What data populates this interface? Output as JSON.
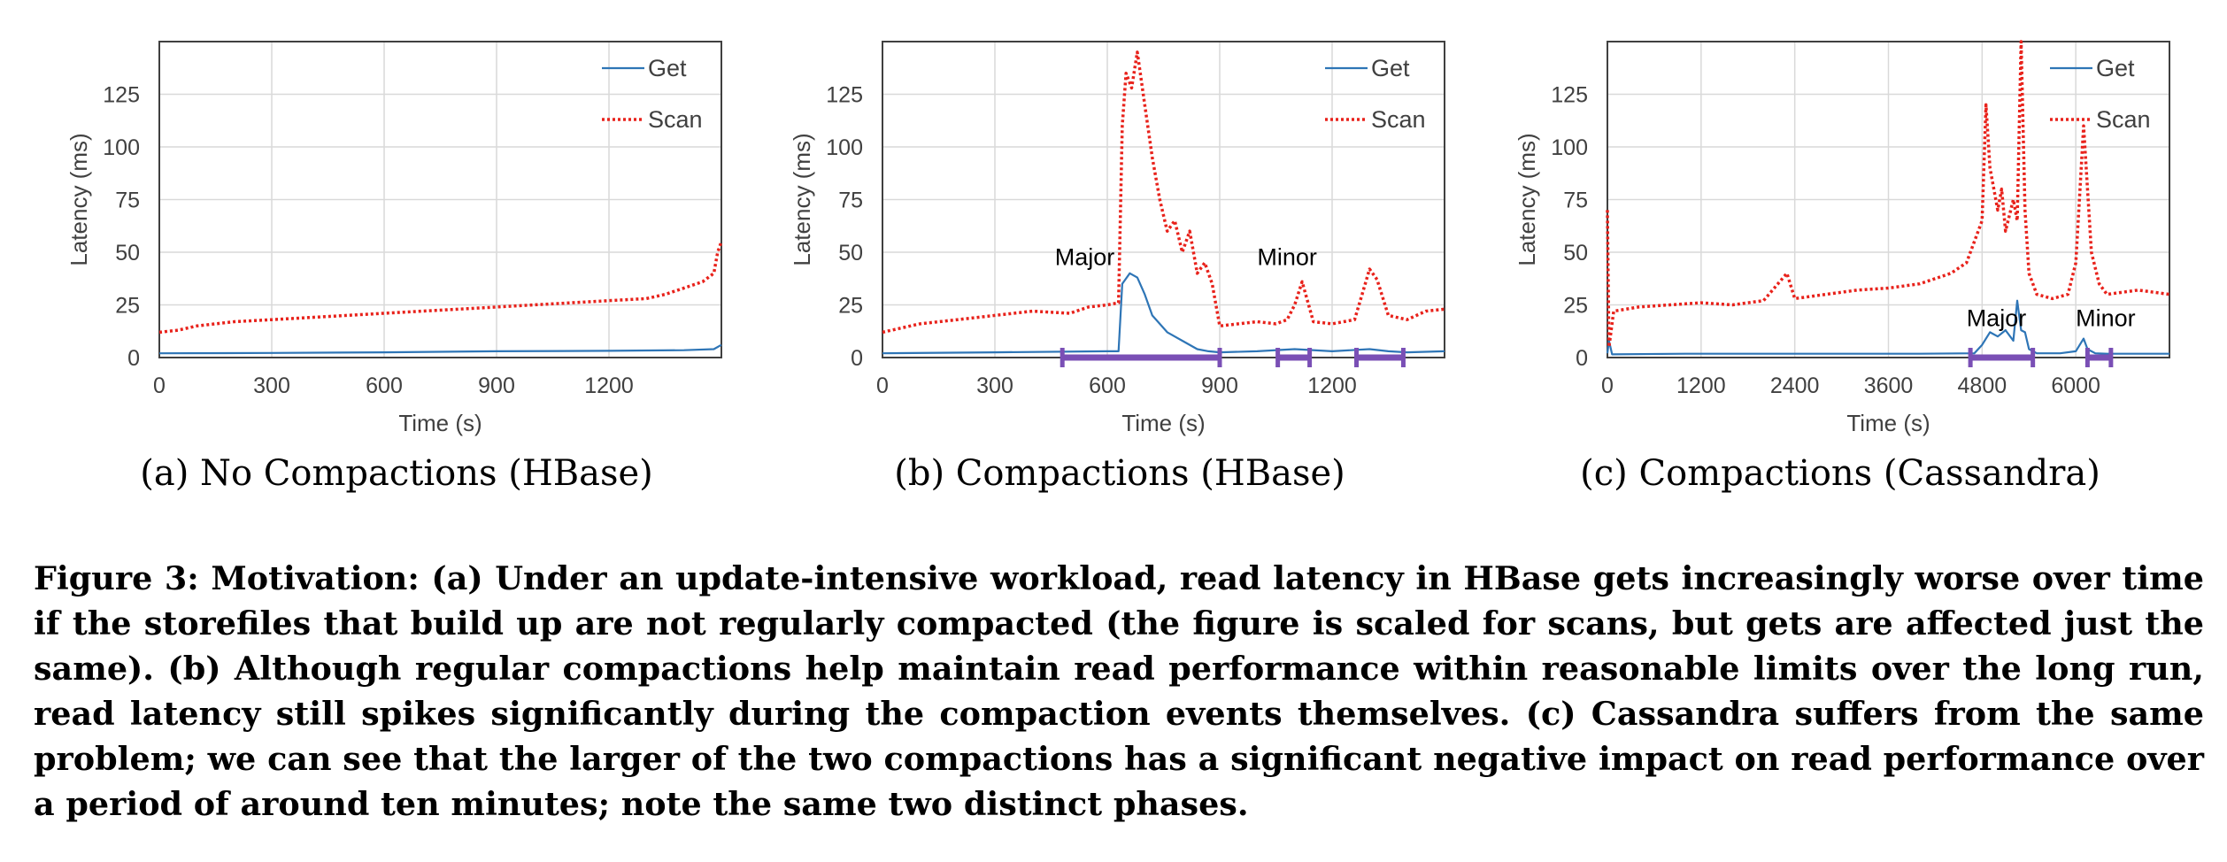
{
  "figure": {
    "caption": "Figure 3: Motivation: (a) Under an update-intensive workload, read latency in HBase gets increasingly worse over time if the storefiles that build up are not regularly compacted (the figure is scaled for scans, but gets are affected just the same). (b) Although regular compactions help maintain read performance within reasonable limits over the long run, read latency still spikes significantly during the compaction events themselves. (c) Cassandra suffers from the same problem; we can see that the larger of the two compactions has a significant negative impact on read performance over a period of around ten minutes; note the same two distinct phases."
  },
  "colors": {
    "get": "#2e75b6",
    "scan": "#e8221b",
    "phase": "#7a4fb5",
    "grid": "#d9d9d9",
    "frame": "#404040"
  },
  "chart_data": [
    {
      "type": "line",
      "subcaption": "(a) No Compactions (HBase)",
      "xlabel": "Time (s)",
      "ylabel": "Latency (ms)",
      "xlim": [
        0,
        1500
      ],
      "ylim": [
        0,
        150
      ],
      "xticks": [
        0,
        300,
        600,
        900,
        1200
      ],
      "yticks": [
        0,
        25,
        50,
        75,
        100,
        125
      ],
      "grid": true,
      "legend": "top-right",
      "series": [
        {
          "name": "Get",
          "style": "solid",
          "x": [
            0,
            300,
            600,
            900,
            1200,
            1400,
            1480,
            1500
          ],
          "y": [
            2,
            2.2,
            2.5,
            3,
            3.2,
            3.5,
            4,
            6
          ]
        },
        {
          "name": "Scan",
          "style": "dotted",
          "x": [
            0,
            50,
            100,
            200,
            300,
            400,
            500,
            600,
            700,
            800,
            900,
            1000,
            1100,
            1200,
            1300,
            1350,
            1400,
            1450,
            1480,
            1490,
            1500
          ],
          "y": [
            12,
            13,
            15,
            17,
            18,
            19,
            20,
            21,
            22,
            23,
            24,
            25,
            26,
            27,
            28,
            30,
            33,
            36,
            40,
            50,
            55
          ]
        }
      ],
      "annotations": [],
      "phases": []
    },
    {
      "type": "line",
      "subcaption": "(b) Compactions (HBase)",
      "xlabel": "Time (s)",
      "ylabel": "Latency (ms)",
      "xlim": [
        0,
        1500
      ],
      "ylim": [
        0,
        150
      ],
      "xticks": [
        0,
        300,
        600,
        900,
        1200
      ],
      "yticks": [
        0,
        25,
        50,
        75,
        100,
        125
      ],
      "grid": true,
      "legend": "top-right",
      "series": [
        {
          "name": "Get",
          "style": "solid",
          "x": [
            0,
            300,
            600,
            630,
            640,
            660,
            680,
            700,
            720,
            760,
            800,
            840,
            870,
            900,
            1000,
            1100,
            1200,
            1300,
            1350,
            1400,
            1500
          ],
          "y": [
            2,
            2.5,
            3,
            3,
            35,
            40,
            38,
            30,
            20,
            12,
            8,
            4,
            3,
            2.5,
            3,
            4,
            3,
            4,
            3,
            2.5,
            3
          ]
        },
        {
          "name": "Scan",
          "style": "dotted",
          "x": [
            0,
            100,
            200,
            300,
            400,
            500,
            550,
            600,
            630,
            640,
            650,
            665,
            680,
            700,
            720,
            740,
            760,
            780,
            800,
            820,
            840,
            860,
            880,
            900,
            950,
            1000,
            1050,
            1080,
            1100,
            1120,
            1150,
            1200,
            1260,
            1280,
            1300,
            1320,
            1350,
            1400,
            1450,
            1500
          ],
          "y": [
            12,
            16,
            18,
            20,
            22,
            21,
            24,
            25,
            26,
            110,
            135,
            128,
            145,
            120,
            95,
            75,
            60,
            65,
            50,
            60,
            40,
            45,
            35,
            15,
            16,
            17,
            16,
            18,
            25,
            36,
            17,
            16,
            18,
            30,
            42,
            37,
            20,
            18,
            22,
            23
          ]
        }
      ],
      "annotations": [
        {
          "text": "Major",
          "x": 460,
          "y": 44
        },
        {
          "text": "Minor",
          "x": 1000,
          "y": 44
        }
      ],
      "phases": [
        [
          480,
          900
        ],
        [
          1055,
          1140
        ],
        [
          1265,
          1390
        ]
      ]
    },
    {
      "type": "line",
      "subcaption": "(c) Compactions (Cassandra)",
      "xlabel": "Time (s)",
      "ylabel": "Latency (ms)",
      "xlim": [
        0,
        7200
      ],
      "ylim": [
        0,
        150
      ],
      "xticks": [
        0,
        1200,
        2400,
        3600,
        4800,
        6000
      ],
      "yticks": [
        0,
        25,
        50,
        75,
        100,
        125
      ],
      "grid": true,
      "legend": "top-right",
      "series": [
        {
          "name": "Get",
          "style": "solid",
          "x": [
            0,
            20,
            60,
            1000,
            2000,
            3000,
            4000,
            4700,
            4800,
            4900,
            5000,
            5100,
            5200,
            5250,
            5300,
            5350,
            5400,
            5500,
            5800,
            6000,
            6100,
            6150,
            6250,
            6400,
            7200
          ],
          "y": [
            2,
            8,
            1.5,
            1.8,
            1.8,
            1.8,
            1.8,
            2,
            6,
            12,
            10,
            13,
            8,
            27,
            13,
            12,
            4,
            2,
            2,
            3,
            9,
            4,
            2,
            1.8,
            1.8
          ]
        },
        {
          "name": "Scan",
          "style": "dotted",
          "x": [
            0,
            20,
            80,
            400,
            800,
            1200,
            1600,
            2000,
            2300,
            2400,
            2800,
            3200,
            3600,
            4000,
            4400,
            4600,
            4700,
            4800,
            4850,
            4900,
            5000,
            5050,
            5100,
            5200,
            5250,
            5300,
            5350,
            5400,
            5500,
            5700,
            5900,
            6000,
            6100,
            6150,
            6200,
            6300,
            6400,
            6800,
            7200
          ],
          "y": [
            70,
            5,
            22,
            24,
            25,
            26,
            25,
            27,
            40,
            28,
            30,
            32,
            33,
            35,
            40,
            45,
            55,
            65,
            120,
            90,
            70,
            80,
            60,
            75,
            65,
            150,
            70,
            40,
            30,
            28,
            30,
            45,
            110,
            80,
            50,
            35,
            30,
            32,
            30
          ]
        }
      ],
      "annotations": [
        {
          "text": "Major",
          "x": 4600,
          "y": 15
        },
        {
          "text": "Minor",
          "x": 6000,
          "y": 15
        }
      ],
      "phases": [
        [
          4650,
          5450
        ],
        [
          6150,
          6450
        ]
      ]
    }
  ]
}
